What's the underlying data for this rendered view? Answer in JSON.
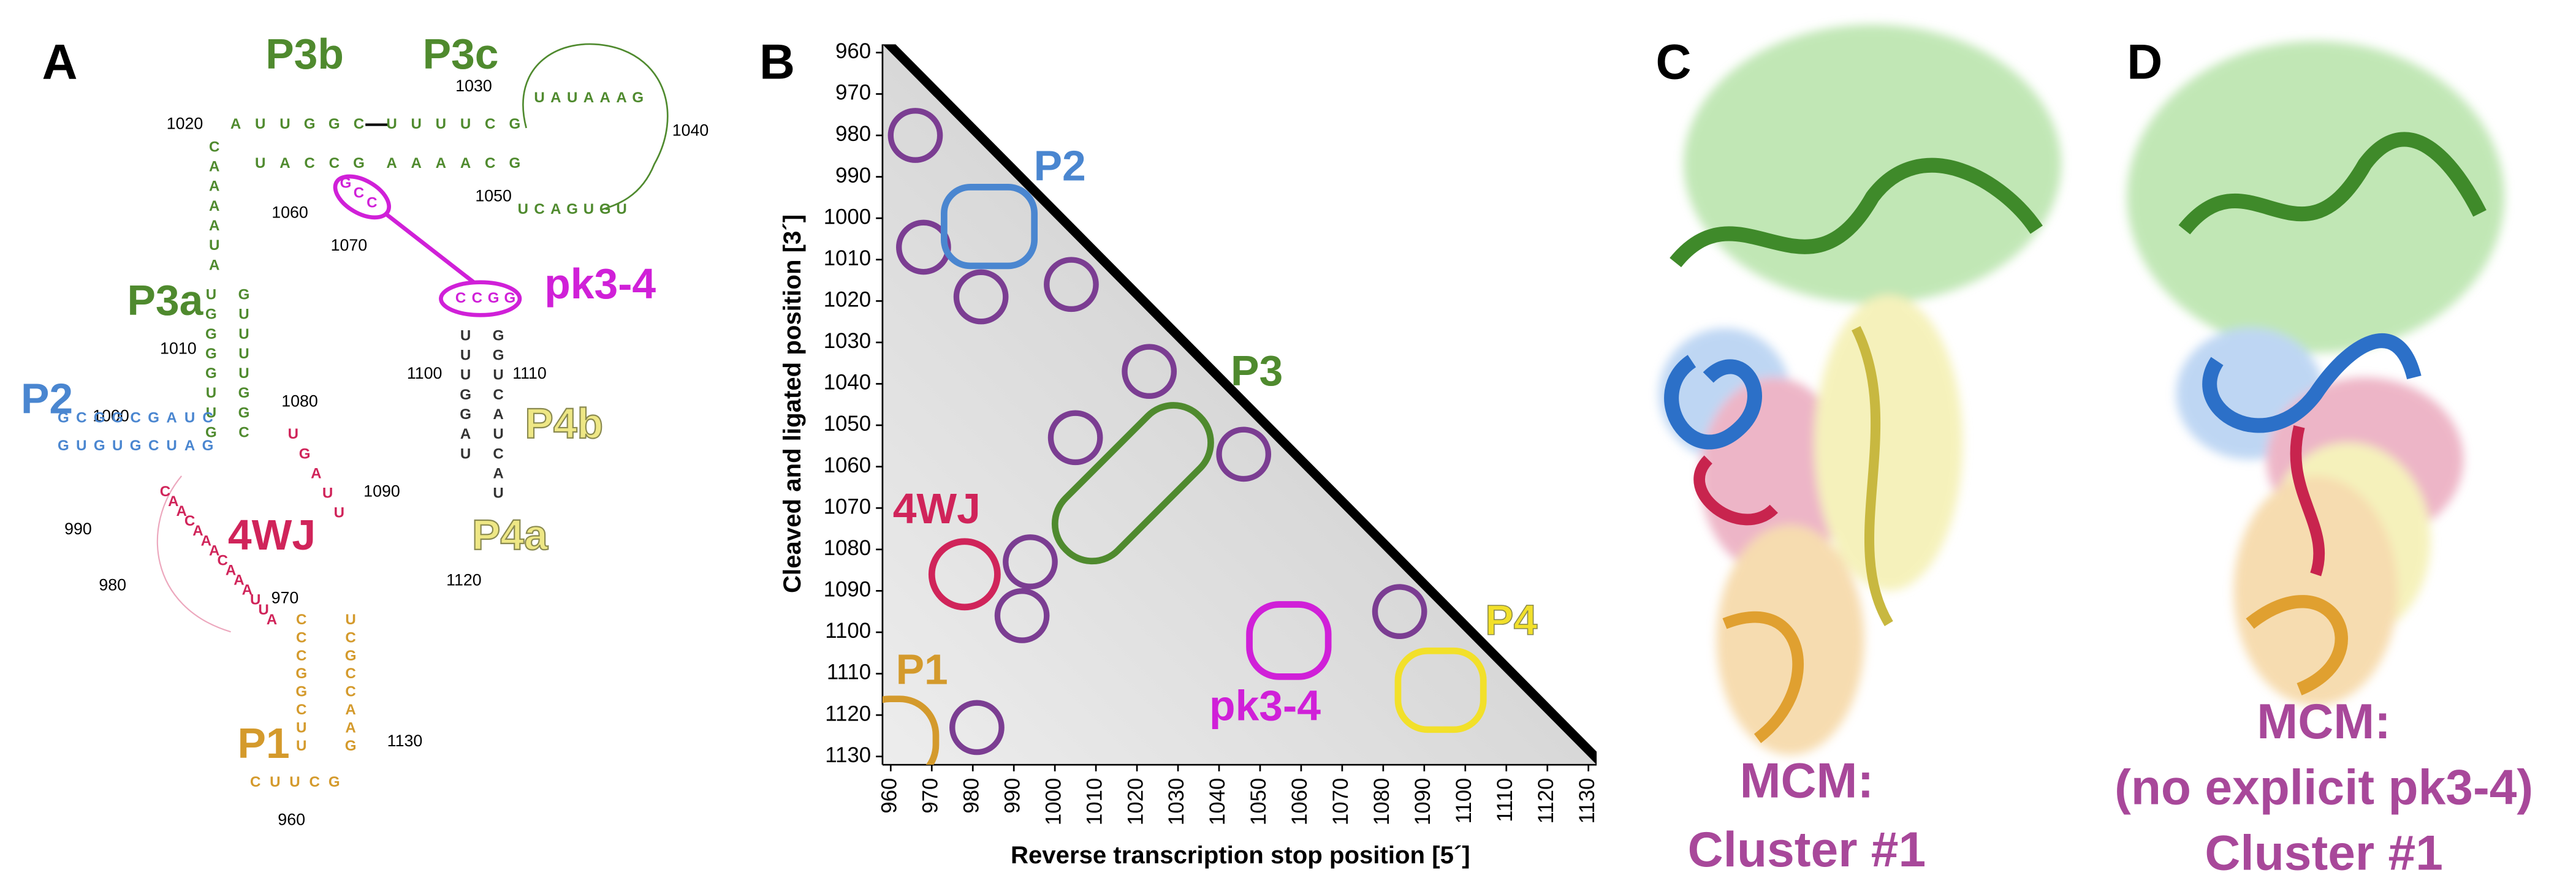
{
  "panels": {
    "A": {
      "letter": "A",
      "labels": [
        {
          "text": "P3b",
          "color": "#4f8a2e"
        },
        {
          "text": "P3c",
          "color": "#4f8a2e"
        },
        {
          "text": "P3a",
          "color": "#4f8a2e"
        },
        {
          "text": "P2",
          "color": "#4a86d0"
        },
        {
          "text": "4WJ",
          "color": "#d0245a"
        },
        {
          "text": "pk3-4",
          "color": "#d020d8"
        },
        {
          "text": "P4b",
          "color": "#eee785"
        },
        {
          "text": "P4a",
          "color": "#eee785"
        },
        {
          "text": "P1",
          "color": "#d49a2c"
        }
      ],
      "numbers": [
        1020,
        1030,
        1040,
        1050,
        1060,
        1070,
        1010,
        1000,
        990,
        1080,
        1100,
        1110,
        1090,
        1120,
        980,
        970,
        1130,
        960
      ],
      "sequences": [
        {
          "text": "AUUGGC",
          "color": "#4f8a2e"
        },
        {
          "text": "UUUUCG",
          "color": "#4f8a2e"
        },
        {
          "text": "UACCG",
          "color": "#4f8a2e"
        },
        {
          "text": "AAAACG",
          "color": "#4f8a2e"
        },
        {
          "text": "UCAGUGU",
          "color": "#4f8a2e"
        },
        {
          "text": "UAUAAAG",
          "color": "#4f8a2e"
        },
        {
          "text": "CAAAAUA",
          "color": "#4f8a2e"
        },
        {
          "text": "UGGGGUUG",
          "color": "#4f8a2e"
        },
        {
          "text": "GUUUUGGC",
          "color": "#4f8a2e"
        },
        {
          "text": "GCGGCGAUC",
          "color": "#4a86d0"
        },
        {
          "text": "GUGUGCUAG",
          "color": "#4a86d0"
        },
        {
          "text": "CAACAAACAAAUUA",
          "color": "#d0245a"
        },
        {
          "text": "UGAUU",
          "color": "#d0245a"
        },
        {
          "text": "CCCGGCUU",
          "color": "#d49a2c"
        },
        {
          "text": "UCGCCAAG",
          "color": "#d49a2c"
        },
        {
          "text": "CUUCG",
          "color": "#d49a2c"
        },
        {
          "text": "GCC",
          "color": "#d020d8"
        },
        {
          "text": "CCGG",
          "color": "#d020d8"
        },
        {
          "text": "UUUGGAU",
          "color": "#333"
        },
        {
          "text": "GGUCAUCAU",
          "color": "#333"
        }
      ]
    },
    "C": {
      "letter": "C",
      "caption": [
        "MCM:",
        "Cluster #1"
      ]
    },
    "D": {
      "letter": "D",
      "caption": [
        "MCM:",
        "(no explicit pk3-4)",
        "Cluster #1"
      ]
    }
  },
  "chart_data": {
    "type": "heatmap",
    "letter": "B",
    "xlabel": "Reverse transcription stop position [5´]",
    "ylabel": "Cleaved and ligated position [3´]",
    "xlim": [
      958,
      1132
    ],
    "ylim": [
      958,
      1132
    ],
    "y_inverted": true,
    "xticks": [
      960,
      970,
      980,
      990,
      1000,
      1010,
      1020,
      1030,
      1040,
      1050,
      1060,
      1070,
      1080,
      1090,
      1100,
      1110,
      1120,
      1130
    ],
    "yticks": [
      960,
      970,
      980,
      990,
      1000,
      1010,
      1020,
      1030,
      1040,
      1050,
      1060,
      1070,
      1080,
      1090,
      1100,
      1110,
      1120,
      1130
    ],
    "regions": [
      {
        "name": "P2",
        "x": 984,
        "y": 1002,
        "color": "#4a86d0"
      },
      {
        "name": "P3",
        "x": 1019,
        "y": 1064,
        "color": "#4f8a2e"
      },
      {
        "name": "4WJ",
        "x": 978,
        "y": 1086,
        "color": "#d0245a"
      },
      {
        "name": "pk3-4",
        "x": 1057,
        "y": 1102,
        "color": "#d020d8"
      },
      {
        "name": "P4",
        "x": 1094,
        "y": 1114,
        "color": "#f2e02a"
      },
      {
        "name": "P1",
        "x": 961,
        "y": 1126,
        "color": "#d49a2c"
      }
    ],
    "circle_color": "#7b3d92",
    "circles": [
      {
        "x": 966,
        "y": 980
      },
      {
        "x": 968,
        "y": 1007
      },
      {
        "x": 982,
        "y": 1019
      },
      {
        "x": 1004,
        "y": 1016
      },
      {
        "x": 1023,
        "y": 1037
      },
      {
        "x": 1005,
        "y": 1053
      },
      {
        "x": 1046,
        "y": 1057
      },
      {
        "x": 994,
        "y": 1083
      },
      {
        "x": 992,
        "y": 1096
      },
      {
        "x": 1084,
        "y": 1095
      },
      {
        "x": 981,
        "y": 1123
      }
    ]
  }
}
